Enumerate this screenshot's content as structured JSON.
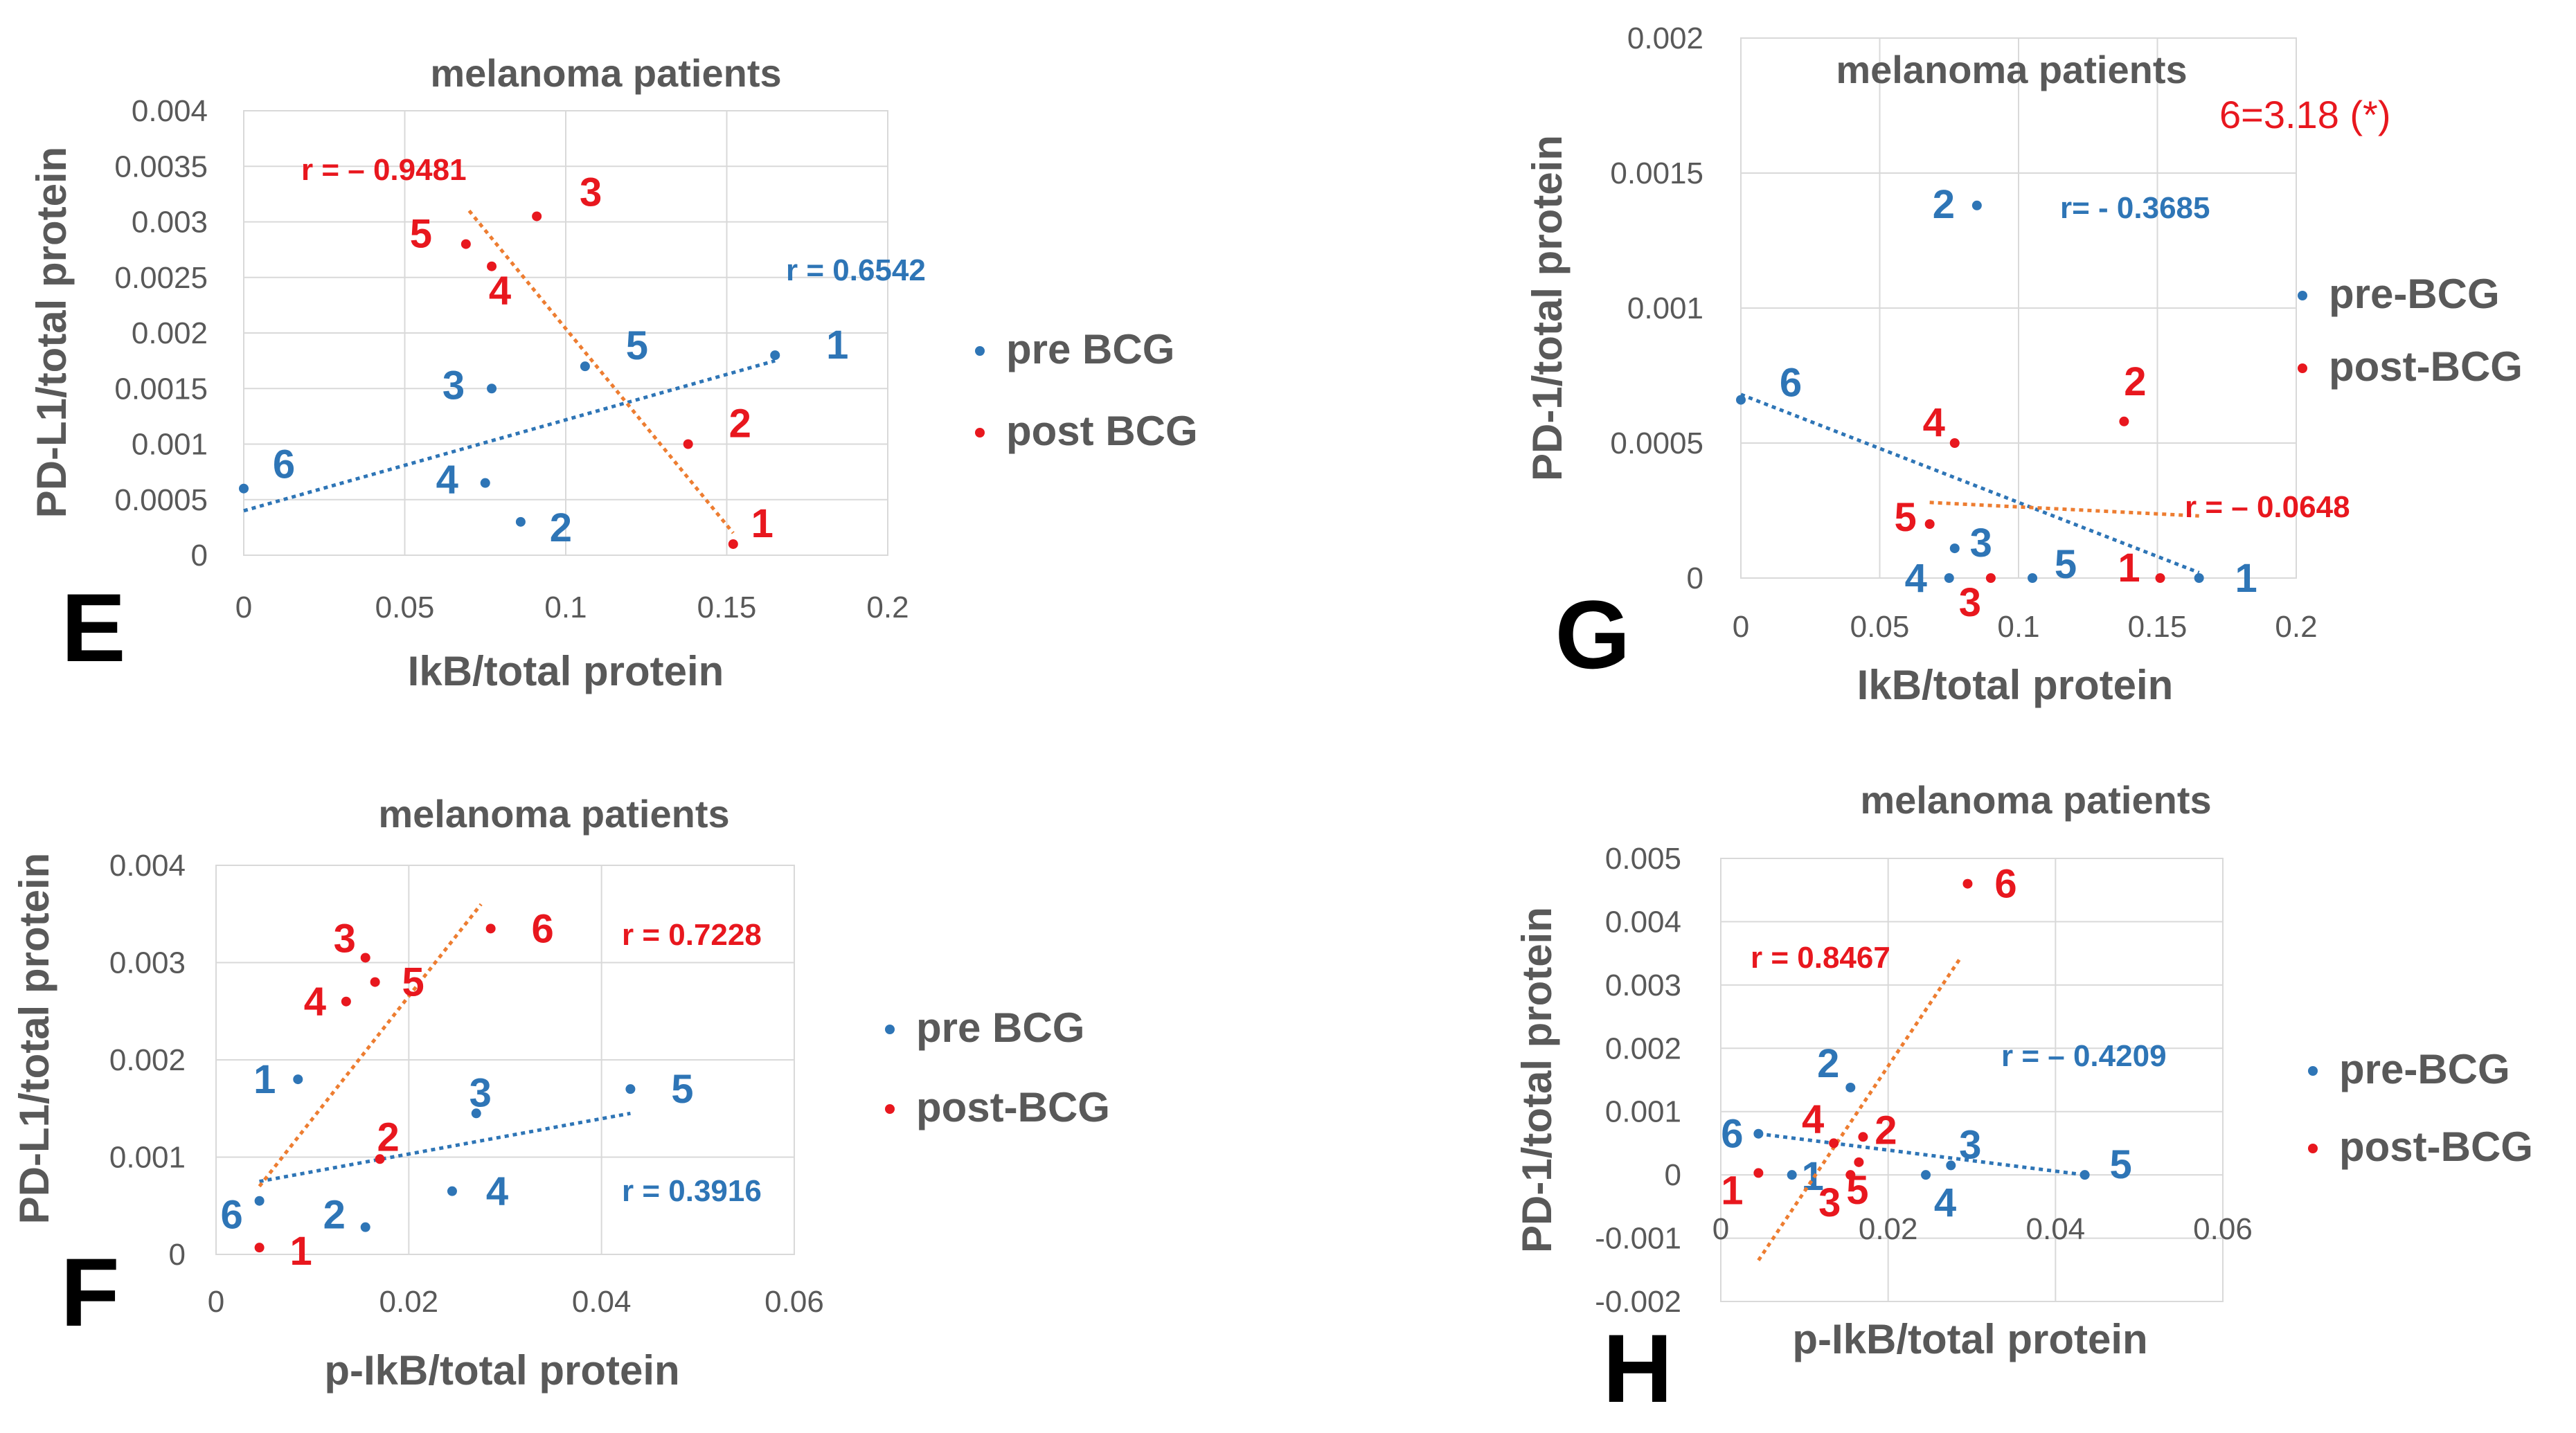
{
  "colors": {
    "pre": "#2e75b6",
    "post": "#e8171e",
    "post_trend": "#ed7d31",
    "grid": "#d9d9d9",
    "frame": "#d9d9d9"
  },
  "chart_data": [
    {
      "panel": "E",
      "type": "scatter",
      "title": "melanoma patients",
      "xlabel": "IkB/total protein",
      "ylabel": "PD-L1/total protein",
      "xlim": [
        0,
        0.2
      ],
      "ylim": [
        0,
        0.004
      ],
      "xticks": [
        0,
        0.05,
        0.1,
        0.15,
        0.2
      ],
      "yticks": [
        0,
        0.0005,
        0.001,
        0.0015,
        0.002,
        0.0025,
        0.003,
        0.0035,
        0.004
      ],
      "xtick_labels": [
        "0",
        "0.05",
        "0.1",
        "0.15",
        "0.2"
      ],
      "ytick_labels": [
        "0",
        "0.0005",
        "0.001",
        "0.0015",
        "0.002",
        "0.0025",
        "0.003",
        "0.0035",
        "0.004"
      ],
      "note": "",
      "series": [
        {
          "name": "pre BCG",
          "color_key": "pre",
          "points": [
            {
              "label": "1",
              "x": 0.165,
              "y": 0.0018
            },
            {
              "label": "2",
              "x": 0.086,
              "y": 0.0003
            },
            {
              "label": "3",
              "x": 0.077,
              "y": 0.0015
            },
            {
              "label": "4",
              "x": 0.075,
              "y": 0.00065
            },
            {
              "label": "5",
              "x": 0.106,
              "y": 0.0017
            },
            {
              "label": "6",
              "x": 0.0,
              "y": 0.0006
            }
          ],
          "trend": {
            "x": [
              0,
              0.165
            ],
            "y": [
              0.0004,
              0.00175
            ]
          },
          "r": "r = 0.6542"
        },
        {
          "name": "post BCG",
          "color_key": "post",
          "points": [
            {
              "label": "1",
              "x": 0.152,
              "y": 0.0001
            },
            {
              "label": "2",
              "x": 0.138,
              "y": 0.001
            },
            {
              "label": "3",
              "x": 0.091,
              "y": 0.00305
            },
            {
              "label": "4",
              "x": 0.077,
              "y": 0.0026
            },
            {
              "label": "5",
              "x": 0.069,
              "y": 0.0028
            }
          ],
          "trend": {
            "x": [
              0.07,
              0.152
            ],
            "y": [
              0.0031,
              0.0002
            ]
          },
          "r": "r = – 0.9481"
        }
      ]
    },
    {
      "panel": "F",
      "type": "scatter",
      "title": "melanoma patients",
      "xlabel": "p-IkB/total protein",
      "ylabel": "PD-L1/total protein",
      "xlim": [
        0,
        0.06
      ],
      "ylim": [
        0,
        0.004
      ],
      "xticks": [
        0,
        0.02,
        0.04,
        0.06
      ],
      "yticks": [
        0,
        0.001,
        0.002,
        0.003,
        0.004
      ],
      "xtick_labels": [
        "0",
        "0.02",
        "0.04",
        "0.06"
      ],
      "ytick_labels": [
        "0",
        "0.001",
        "0.002",
        "0.003",
        "0.004"
      ],
      "note": "",
      "series": [
        {
          "name": "pre BCG",
          "color_key": "pre",
          "points": [
            {
              "label": "1",
              "x": 0.0085,
              "y": 0.0018
            },
            {
              "label": "2",
              "x": 0.0155,
              "y": 0.00028
            },
            {
              "label": "3",
              "x": 0.027,
              "y": 0.00145
            },
            {
              "label": "4",
              "x": 0.0245,
              "y": 0.00065
            },
            {
              "label": "5",
              "x": 0.043,
              "y": 0.0017
            },
            {
              "label": "6",
              "x": 0.0045,
              "y": 0.00055
            }
          ],
          "trend": {
            "x": [
              0.0045,
              0.043
            ],
            "y": [
              0.00075,
              0.00145
            ]
          },
          "r": "r = 0.3916"
        },
        {
          "name": "post-BCG",
          "color_key": "post",
          "points": [
            {
              "label": "1",
              "x": 0.0045,
              "y": 7e-05
            },
            {
              "label": "2",
              "x": 0.017,
              "y": 0.00098
            },
            {
              "label": "3",
              "x": 0.0155,
              "y": 0.00305
            },
            {
              "label": "4",
              "x": 0.0135,
              "y": 0.0026
            },
            {
              "label": "5",
              "x": 0.0165,
              "y": 0.0028
            },
            {
              "label": "6",
              "x": 0.0285,
              "y": 0.00335
            }
          ],
          "trend": {
            "x": [
              0.0045,
              0.0275
            ],
            "y": [
              0.0007,
              0.0036
            ]
          },
          "r": "r = 0.7228"
        }
      ]
    },
    {
      "panel": "G",
      "type": "scatter",
      "title": "melanoma patients",
      "xlabel": "IkB/total protein",
      "ylabel": "PD-1/total protein",
      "xlim": [
        0,
        0.2
      ],
      "ylim": [
        0,
        0.002
      ],
      "xticks": [
        0,
        0.05,
        0.1,
        0.15,
        0.2
      ],
      "yticks": [
        0,
        0.0005,
        0.001,
        0.0015,
        0.002
      ],
      "xtick_labels": [
        "0",
        "0.05",
        "0.1",
        "0.15",
        "0.2"
      ],
      "ytick_labels": [
        "0",
        "0.0005",
        "0.001",
        "0.0015",
        "0.002"
      ],
      "note": "6=3.18 (*)",
      "series": [
        {
          "name": "pre-BCG",
          "color_key": "pre",
          "points": [
            {
              "label": "1",
              "x": 0.165,
              "y": 0.0
            },
            {
              "label": "2",
              "x": 0.085,
              "y": 0.00138
            },
            {
              "label": "3",
              "x": 0.077,
              "y": 0.00011
            },
            {
              "label": "4",
              "x": 0.075,
              "y": 0.0
            },
            {
              "label": "5",
              "x": 0.105,
              "y": 0.0
            },
            {
              "label": "6",
              "x": 0.0,
              "y": 0.00066
            }
          ],
          "trend": {
            "x": [
              0,
              0.165
            ],
            "y": [
              0.00068,
              2e-05
            ]
          },
          "r": "r= - 0.3685"
        },
        {
          "name": "post-BCG",
          "color_key": "post",
          "points": [
            {
              "label": "1",
              "x": 0.151,
              "y": 0.0
            },
            {
              "label": "2",
              "x": 0.138,
              "y": 0.00058
            },
            {
              "label": "3",
              "x": 0.09,
              "y": 0.0
            },
            {
              "label": "4",
              "x": 0.077,
              "y": 0.0005
            },
            {
              "label": "5",
              "x": 0.068,
              "y": 0.0002
            }
          ],
          "trend": {
            "x": [
              0.068,
              0.165
            ],
            "y": [
              0.00028,
              0.00023
            ]
          },
          "r": "r = – 0.0648"
        }
      ]
    },
    {
      "panel": "H",
      "type": "scatter",
      "title": "melanoma patients",
      "xlabel": "p-IkB/total protein",
      "ylabel": "PD-1/total protein",
      "xlim": [
        0,
        0.06
      ],
      "ylim": [
        -0.002,
        0.005
      ],
      "xticks": [
        0,
        0.02,
        0.04,
        0.06
      ],
      "yticks": [
        -0.002,
        -0.001,
        0,
        0.001,
        0.002,
        0.003,
        0.004,
        0.005
      ],
      "xtick_labels": [
        "0",
        "0.02",
        "0.04",
        "0.06"
      ],
      "ytick_labels": [
        "-0.002",
        "-0.001",
        "0",
        "0.001",
        "0.002",
        "0.003",
        "0.004",
        "0.005"
      ],
      "note": "",
      "series": [
        {
          "name": "pre-BCG",
          "color_key": "pre",
          "points": [
            {
              "label": "1",
              "x": 0.0085,
              "y": 0.0
            },
            {
              "label": "2",
              "x": 0.0155,
              "y": 0.00138
            },
            {
              "label": "3",
              "x": 0.0275,
              "y": 0.00015
            },
            {
              "label": "4",
              "x": 0.0245,
              "y": 0.0
            },
            {
              "label": "5",
              "x": 0.0435,
              "y": 0.0
            },
            {
              "label": "6",
              "x": 0.0045,
              "y": 0.00065
            }
          ],
          "trend": {
            "x": [
              0.0045,
              0.0435
            ],
            "y": [
              0.00065,
              0.0
            ]
          },
          "r": "r = – 0.4209"
        },
        {
          "name": "post-BCG",
          "color_key": "post",
          "points": [
            {
              "label": "1",
              "x": 0.0045,
              "y": 3e-05
            },
            {
              "label": "2",
              "x": 0.017,
              "y": 0.0006
            },
            {
              "label": "3",
              "x": 0.0155,
              "y": 0.0
            },
            {
              "label": "4",
              "x": 0.0135,
              "y": 0.0005
            },
            {
              "label": "5",
              "x": 0.0165,
              "y": 0.0002
            },
            {
              "label": "6",
              "x": 0.0295,
              "y": 0.0046
            }
          ],
          "trend": {
            "x": [
              0.0045,
              0.0285
            ],
            "y": [
              -0.00135,
              0.0034
            ]
          },
          "r": "r = 0.8467"
        }
      ]
    }
  ]
}
